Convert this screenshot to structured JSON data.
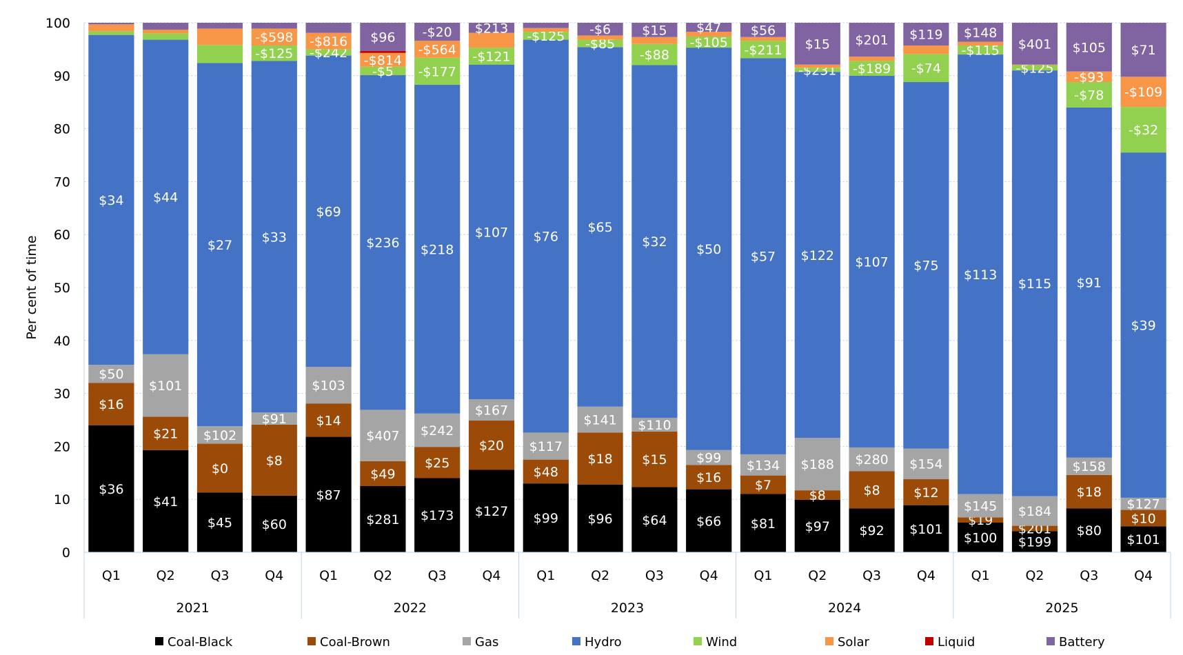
{
  "chart_data": {
    "type": "bar",
    "stacked": true,
    "ylabel": "Per cent of time",
    "ylim": [
      0,
      100
    ],
    "yticks": [
      0,
      10,
      20,
      30,
      40,
      50,
      60,
      70,
      80,
      90,
      100
    ],
    "grid": true,
    "legend_position": "bottom",
    "categories": [
      "Q1",
      "Q2",
      "Q3",
      "Q4",
      "Q1",
      "Q2",
      "Q3",
      "Q4",
      "Q1",
      "Q2",
      "Q3",
      "Q4",
      "Q1",
      "Q2",
      "Q3",
      "Q4",
      "Q1",
      "Q2",
      "Q3",
      "Q4"
    ],
    "groups": [
      {
        "label": "2021",
        "count": 4
      },
      {
        "label": "2022",
        "count": 4
      },
      {
        "label": "2023",
        "count": 4
      },
      {
        "label": "2024",
        "count": 4
      },
      {
        "label": "2025",
        "count": 4
      }
    ],
    "series": [
      {
        "name": "Coal-Black",
        "color": "#000000",
        "values": [
          24,
          19.3,
          11.3,
          10.7,
          21.8,
          12.5,
          14,
          15.6,
          13,
          12.8,
          12.3,
          11.9,
          11,
          9.9,
          8.3,
          8.9,
          5.6,
          4,
          8.3,
          4.9
        ],
        "labels": [
          "$36",
          "$41",
          "$45",
          "$60",
          "$87",
          "$281",
          "$173",
          "$127",
          "$99",
          "$96",
          "$64",
          "$66",
          "$81",
          "$97",
          "$92",
          "$101",
          "$100",
          "$199",
          "$80",
          "$101"
        ]
      },
      {
        "name": "Coal-Brown",
        "color": "#9C4A08",
        "values": [
          8,
          6.3,
          9.2,
          13.4,
          6.3,
          4.7,
          5.9,
          9.3,
          4.5,
          9.8,
          10.5,
          4.6,
          3.5,
          1.8,
          7,
          4.9,
          1,
          1,
          6.3,
          3.1
        ],
        "labels": [
          "$16",
          "$21",
          "$0",
          "$8",
          "$14",
          "$49",
          "$25",
          "$20",
          "$48",
          "$18",
          "$15",
          "$16",
          "$7",
          "$8",
          "$8",
          "$12",
          "$19",
          "$201",
          "$18",
          "$10"
        ]
      },
      {
        "name": "Gas",
        "color": "#A5A5A5",
        "values": [
          3.4,
          11.8,
          3.3,
          2.3,
          6.9,
          9.7,
          6.3,
          4,
          5.1,
          4.9,
          2.6,
          2.8,
          4,
          9.9,
          4.5,
          5.8,
          4.4,
          5.6,
          3.3,
          2.3
        ],
        "labels": [
          "$50",
          "$101",
          "$102",
          "$91",
          "$103",
          "$407",
          "$242",
          "$167",
          "$117",
          "$141",
          "$110",
          "$99",
          "$134",
          "$188",
          "$280",
          "$154",
          "$145",
          "$184",
          "$158",
          "$127"
        ]
      },
      {
        "name": "Hydro",
        "color": "#4472C4",
        "values": [
          62.3,
          59.4,
          68.6,
          66.4,
          58.8,
          63.2,
          62.1,
          63.2,
          74.2,
          67.9,
          66.6,
          76,
          74.8,
          69.1,
          70.2,
          69.2,
          83,
          80.4,
          66.1,
          65.2
        ],
        "labels": [
          "$34",
          "$44",
          "$27",
          "$33",
          "$69",
          "$236",
          "$218",
          "$107",
          "$76",
          "$65",
          "$32",
          "$50",
          "$57",
          "$122",
          "$107",
          "$75",
          "$113",
          "$115",
          "$91",
          "$39"
        ]
      },
      {
        "name": "Wind",
        "color": "#92D050",
        "values": [
          0.7,
          1.2,
          3.4,
          2.9,
          1.2,
          1.6,
          5.1,
          3.2,
          1.5,
          1.4,
          4,
          2.1,
          3.3,
          0.8,
          2.8,
          5.3,
          1.7,
          1,
          4.8,
          8.6
        ],
        "labels": [
          null,
          null,
          null,
          "-$125",
          "-$242",
          "-$5",
          "-$177",
          "-$121",
          "-$125",
          "-$85",
          "-$88",
          "-$105",
          "-$211",
          "-$231",
          "-$189",
          "-$74",
          "-$115",
          "-$125",
          "-$78",
          "-$32"
        ]
      },
      {
        "name": "Solar",
        "color": "#F79646",
        "values": [
          1.3,
          0.7,
          3.1,
          3.2,
          3.1,
          2.6,
          3.2,
          2.8,
          0.7,
          0.8,
          1.3,
          0.9,
          0.7,
          0.6,
          0.8,
          1.6,
          0.7,
          0.1,
          2,
          5.7
        ],
        "labels": [
          null,
          null,
          null,
          "-$598",
          "-$816",
          "-$814",
          "-$564",
          null,
          null,
          null,
          null,
          null,
          null,
          null,
          null,
          null,
          null,
          null,
          "-$93",
          "-$109"
        ]
      },
      {
        "name": "Liquid",
        "color": "#C00000",
        "values": [
          0,
          0,
          0,
          0,
          0,
          0.4,
          0,
          0,
          0,
          0,
          0,
          0,
          0,
          0,
          0,
          0,
          0,
          0,
          0,
          0
        ],
        "labels": [
          null,
          null,
          null,
          null,
          null,
          null,
          null,
          null,
          null,
          null,
          null,
          null,
          null,
          null,
          null,
          null,
          null,
          null,
          null,
          null
        ]
      },
      {
        "name": "Battery",
        "color": "#8064A2",
        "values": [
          0.3,
          1.3,
          1.1,
          1.1,
          1.9,
          5.3,
          3.4,
          1.9,
          1,
          2.4,
          2.7,
          1.7,
          2.7,
          7.9,
          6.4,
          4.3,
          3.6,
          7.9,
          9.2,
          10.2
        ],
        "labels": [
          null,
          null,
          null,
          null,
          null,
          "$96",
          "-$20",
          "$213",
          null,
          "-$6",
          "$15",
          "$47",
          "$56",
          "$15",
          "$201",
          "$119",
          "$148",
          "$401",
          "$105",
          "$71"
        ]
      }
    ]
  }
}
